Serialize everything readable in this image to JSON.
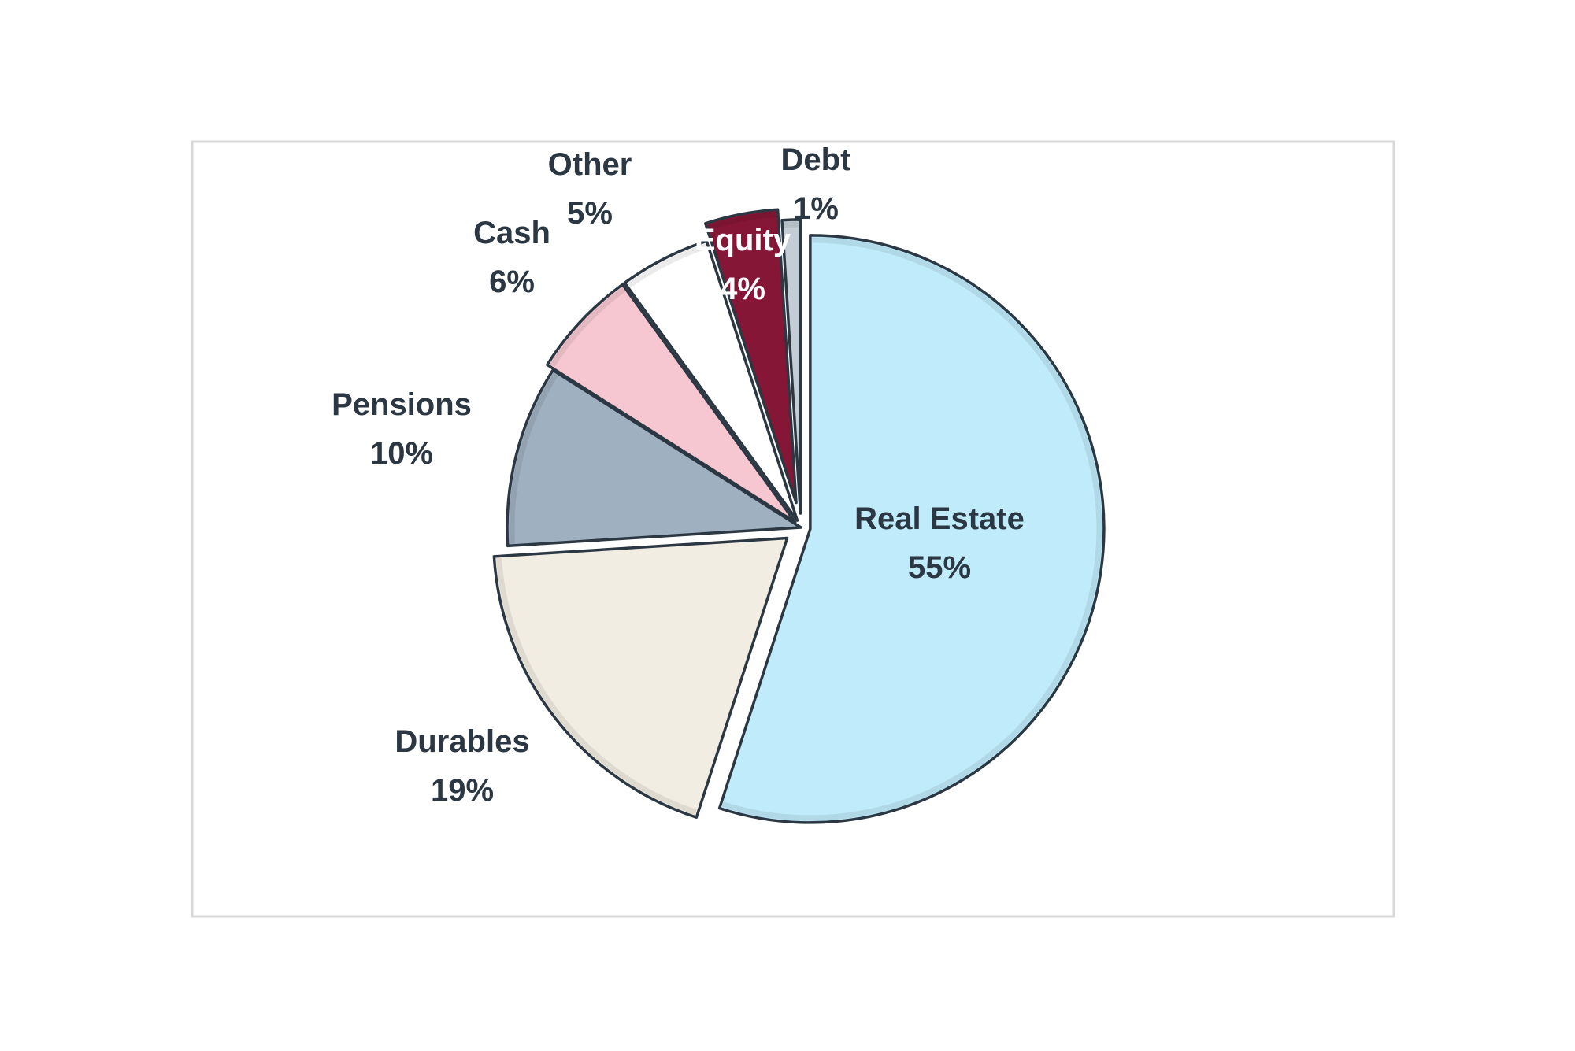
{
  "chart_data": {
    "type": "pie",
    "title": "",
    "slices": [
      {
        "label": "Real Estate",
        "value": 55,
        "pct_label": "55%",
        "color": "#BFEBFA",
        "text_color": "#2B3742"
      },
      {
        "label": "Durables",
        "value": 19,
        "pct_label": "19%",
        "color": "#F2EDE2",
        "text_color": "#2B3742"
      },
      {
        "label": "Pensions",
        "value": 10,
        "pct_label": "10%",
        "color": "#9FB0C1",
        "text_color": "#2B3742"
      },
      {
        "label": "Cash",
        "value": 6,
        "pct_label": "6%",
        "color": "#F6C7D1",
        "text_color": "#2B3742"
      },
      {
        "label": "Other",
        "value": 5,
        "pct_label": "5%",
        "color": "#FFFFFF",
        "text_color": "#2B3742"
      },
      {
        "label": "Equity",
        "value": 4,
        "pct_label": "4%",
        "color": "#851636",
        "text_color": "#FFFFFF"
      },
      {
        "label": "Debt",
        "value": 1,
        "pct_label": "1%",
        "color": "#C4CDD5",
        "text_color": "#2B3742"
      }
    ],
    "start_angle_deg": 0,
    "direction": "clockwise",
    "legend": "none",
    "border_color": "#2B3742",
    "frame_color": "#D9D9D9"
  }
}
